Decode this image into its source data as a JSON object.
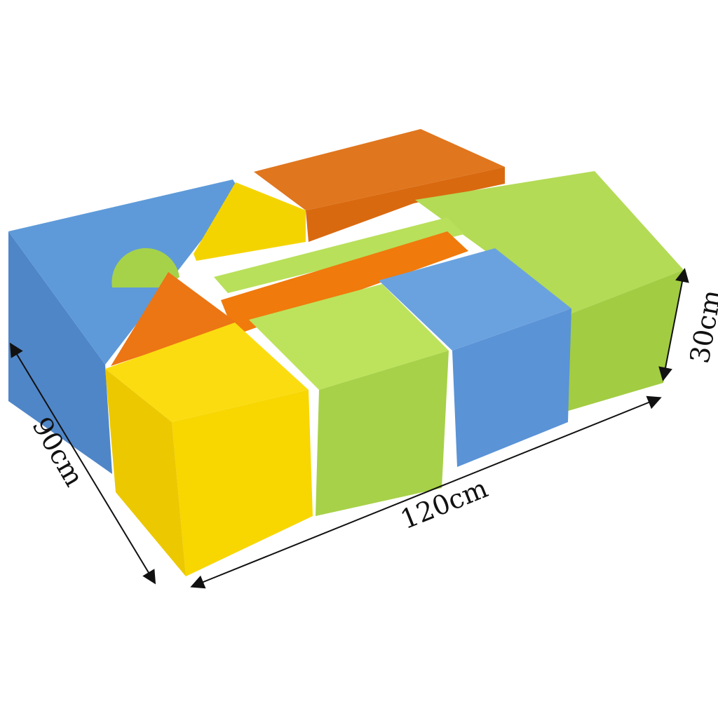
{
  "photo": {
    "subject": "soft-play-foam-blocks",
    "colors": {
      "blue": "#5b95d6",
      "green": "#a8d44a",
      "yellow": "#f5d800",
      "orange": "#f07a10"
    }
  },
  "dimensions": {
    "depth": "90cm",
    "width": "120cm",
    "height": "30cm"
  }
}
